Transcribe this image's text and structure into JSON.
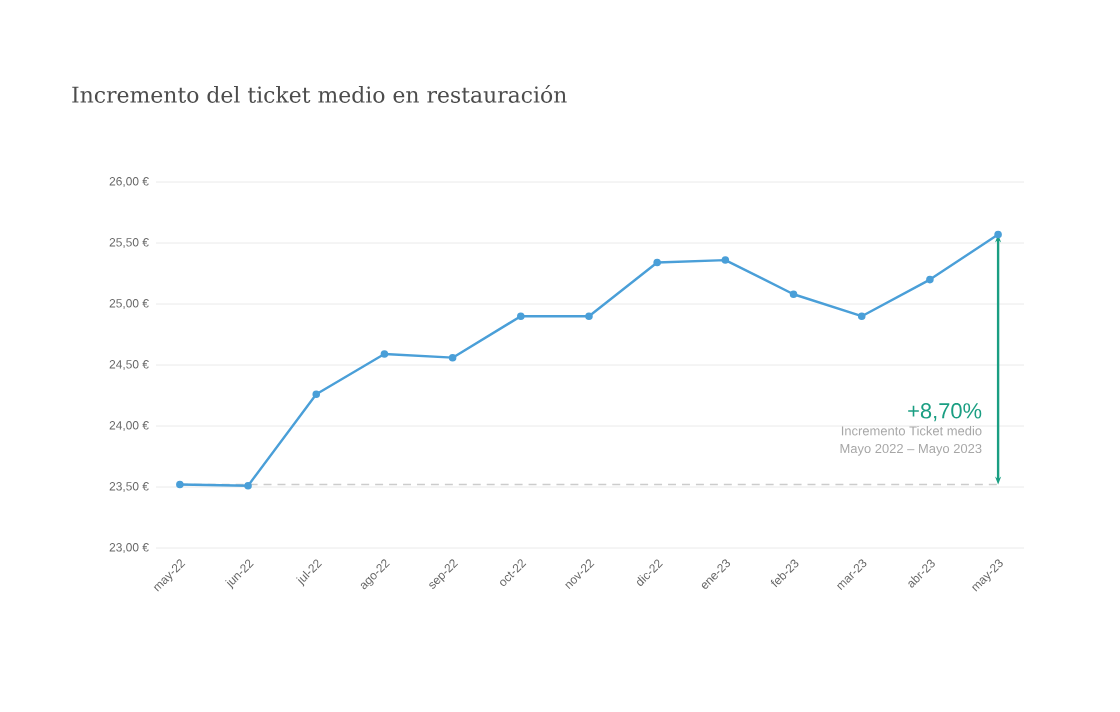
{
  "chart_data": {
    "type": "line",
    "title": "Incremento del ticket medio en restauración",
    "categories": [
      "may-22",
      "jun-22",
      "jul-22",
      "ago-22",
      "sep-22",
      "oct-22",
      "nov-22",
      "dic-22",
      "ene-23",
      "feb-23",
      "mar-23",
      "abr-23",
      "may-23"
    ],
    "series": [
      {
        "color": "#4a9fd8",
        "values": [
          23.52,
          23.51,
          24.26,
          24.59,
          24.56,
          24.9,
          24.9,
          25.34,
          25.36,
          25.08,
          24.9,
          25.2,
          25.57
        ]
      }
    ],
    "ylim": [
      23,
      26
    ],
    "yticks": [
      {
        "value": 23,
        "label": "23,00 €"
      },
      {
        "value": 23.5,
        "label": "23,50 €"
      },
      {
        "value": 24,
        "label": "24,00 €"
      },
      {
        "value": 24.5,
        "label": "24,50 €"
      },
      {
        "value": 25,
        "label": "25,00 €"
      },
      {
        "value": 25.5,
        "label": "25,50 €"
      },
      {
        "value": 26,
        "label": "26,00 €"
      }
    ],
    "grid": "y",
    "marker": "circle",
    "line_style": "solid",
    "ref_lines": [
      {
        "axis": "y",
        "value": 23.52,
        "color": "#cccccc",
        "line_style": "dashed"
      }
    ],
    "annotations": [
      "+8,70%",
      "Incremento Ticket medio",
      "Mayo 2022 – Mayo 2023"
    ]
  }
}
